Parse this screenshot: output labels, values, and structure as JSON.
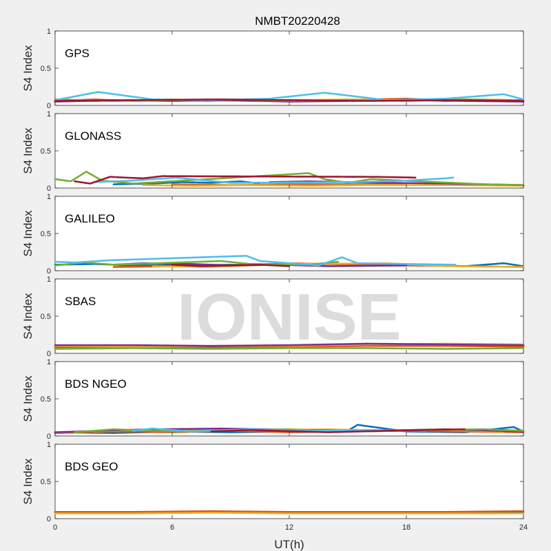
{
  "chart_data": {
    "type": "scatter",
    "title": "NMBT20220428",
    "xlabel": "UT(h)",
    "ylabel": "S4 Index",
    "xlim": [
      0,
      24
    ],
    "ylim": [
      0,
      1
    ],
    "xticks": [
      "0",
      "6",
      "12",
      "18",
      "24"
    ],
    "yticks": [
      "0",
      "0.5",
      "1"
    ],
    "watermark": "IONISE",
    "colors": [
      "#0072bd",
      "#d95319",
      "#edb120",
      "#7e2f8e",
      "#77ac30",
      "#4dbeee",
      "#a2142f"
    ],
    "panels": [
      {
        "label": "GPS",
        "series": [
          {
            "x": [
              0,
              2,
              4,
              6,
              8,
              10,
              12,
              14,
              16,
              18,
              20,
              22,
              24
            ],
            "y": [
              0.07,
              0.06,
              0.07,
              0.06,
              0.07,
              0.06,
              0.07,
              0.06,
              0.07,
              0.08,
              0.06,
              0.07,
              0.06
            ]
          },
          {
            "x": [
              0,
              2,
              4,
              6,
              8,
              10,
              12,
              14,
              16,
              18,
              20,
              22,
              24
            ],
            "y": [
              0.06,
              0.08,
              0.06,
              0.07,
              0.06,
              0.08,
              0.06,
              0.07,
              0.08,
              0.09,
              0.07,
              0.06,
              0.07
            ]
          },
          {
            "x": [
              0,
              3,
              6,
              9,
              12,
              15,
              18,
              21,
              24
            ],
            "y": [
              0.07,
              0.06,
              0.08,
              0.06,
              0.07,
              0.08,
              0.07,
              0.08,
              0.07
            ]
          },
          {
            "x": [
              0,
              3,
              6,
              9,
              12,
              15,
              18,
              21,
              24
            ],
            "y": [
              0.05,
              0.07,
              0.06,
              0.07,
              0.05,
              0.06,
              0.07,
              0.06,
              0.05
            ]
          },
          {
            "x": [
              0,
              3,
              6,
              9,
              12,
              15,
              18,
              21,
              24
            ],
            "y": [
              0.08,
              0.06,
              0.07,
              0.08,
              0.06,
              0.07,
              0.06,
              0.08,
              0.07
            ]
          },
          {
            "x": [
              0,
              2.2,
              5,
              8,
              11,
              13.8,
              17,
              20,
              23,
              24
            ],
            "y": [
              0.07,
              0.18,
              0.08,
              0.07,
              0.09,
              0.17,
              0.07,
              0.09,
              0.15,
              0.08
            ]
          },
          {
            "x": [
              0,
              4,
              8,
              12,
              16,
              20,
              24
            ],
            "y": [
              0.06,
              0.07,
              0.08,
              0.07,
              0.06,
              0.07,
              0.06
            ]
          }
        ]
      },
      {
        "label": "GLONASS",
        "series": [
          {
            "x": [
              3,
              5,
              6.5,
              8,
              9.5,
              10.5
            ],
            "y": [
              0.05,
              0.06,
              0.08,
              0.07,
              0.09,
              0.06
            ]
          },
          {
            "x": [
              6,
              9,
              12,
              15,
              18
            ],
            "y": [
              0.05,
              0.04,
              0.05,
              0.05,
              0.05
            ]
          },
          {
            "x": [
              4.5,
              7,
              10,
              13,
              16,
              20,
              24
            ],
            "y": [
              0.04,
              0.03,
              0.04,
              0.03,
              0.04,
              0.04,
              0.03
            ]
          },
          {
            "x": [
              11,
              13,
              15,
              17,
              20,
              22,
              24
            ],
            "y": [
              0.08,
              0.09,
              0.08,
              0.07,
              0.06,
              0.05,
              0.04
            ]
          },
          {
            "x": [
              0,
              0.8,
              1.6,
              2.4,
              4,
              13,
              13.8,
              15,
              16.2,
              22,
              24
            ],
            "y": [
              0.12,
              0.09,
              0.22,
              0.1,
              0.06,
              0.2,
              0.12,
              0.07,
              0.12,
              0.05,
              0.04
            ]
          },
          {
            "x": [
              2,
              4,
              6.2,
              7,
              9,
              15.5,
              18,
              20,
              20.4
            ],
            "y": [
              0.08,
              0.1,
              0.14,
              0.12,
              0.07,
              0.08,
              0.1,
              0.13,
              0.14
            ]
          },
          {
            "x": [
              1,
              1.8,
              2.8,
              4.5,
              5.5,
              16.5,
              18.5
            ],
            "y": [
              0.09,
              0.06,
              0.15,
              0.13,
              0.16,
              0.15,
              0.14
            ]
          }
        ]
      },
      {
        "label": "GALILEO",
        "series": [
          {
            "x": [
              0,
              2,
              4,
              15,
              17,
              19,
              21,
              23,
              24
            ],
            "y": [
              0.08,
              0.09,
              0.07,
              0.09,
              0.07,
              0.08,
              0.06,
              0.1,
              0.06
            ]
          },
          {
            "x": [
              3,
              6,
              9,
              12,
              18,
              21,
              24
            ],
            "y": [
              0.05,
              0.06,
              0.07,
              0.1,
              0.07,
              0.06,
              0.05
            ]
          },
          {
            "x": [
              5,
              8,
              10,
              12,
              17,
              20,
              24
            ],
            "y": [
              0.06,
              0.05,
              0.07,
              0.09,
              0.1,
              0.06,
              0.05
            ]
          },
          {
            "x": [
              3,
              4.5,
              7,
              9,
              11.5,
              14,
              18
            ],
            "y": [
              0.08,
              0.1,
              0.09,
              0.07,
              0.08,
              0.06,
              0.07
            ]
          },
          {
            "x": [
              0,
              1.5,
              3,
              8.5,
              10,
              13,
              14.5
            ],
            "y": [
              0.07,
              0.11,
              0.08,
              0.13,
              0.09,
              0.08,
              0.12
            ]
          },
          {
            "x": [
              0,
              1,
              2.8,
              9.8,
              10.5,
              13.5,
              14.7,
              15.5,
              20.5
            ],
            "y": [
              0.12,
              0.11,
              0.14,
              0.2,
              0.13,
              0.07,
              0.18,
              0.1,
              0.08
            ]
          },
          {
            "x": [
              6,
              7.5,
              10.5,
              12
            ],
            "y": [
              0.08,
              0.06,
              0.08,
              0.06
            ]
          }
        ]
      },
      {
        "label": "SBAS",
        "series": [
          {
            "x": [
              0,
              4,
              8,
              12,
              16,
              20,
              24
            ],
            "y": [
              0.09,
              0.1,
              0.09,
              0.1,
              0.1,
              0.11,
              0.1
            ]
          },
          {
            "x": [
              0,
              4,
              8,
              12,
              16,
              20,
              24
            ],
            "y": [
              0.08,
              0.09,
              0.08,
              0.09,
              0.1,
              0.1,
              0.09
            ]
          },
          {
            "x": [
              0,
              4,
              8,
              12,
              16,
              20,
              24
            ],
            "y": [
              0.1,
              0.09,
              0.1,
              0.1,
              0.12,
              0.13,
              0.12
            ]
          },
          {
            "x": [
              0,
              4,
              8,
              12,
              16,
              20,
              24
            ],
            "y": [
              0.11,
              0.11,
              0.1,
              0.11,
              0.13,
              0.12,
              0.11
            ]
          },
          {
            "x": [
              0,
              4,
              8,
              12,
              16,
              20,
              24
            ],
            "y": [
              0.06,
              0.07,
              0.06,
              0.07,
              0.07,
              0.06,
              0.07
            ]
          }
        ]
      },
      {
        "label": "BDS NGEO",
        "series": [
          {
            "x": [
              0,
              3,
              6,
              9,
              12,
              15,
              15.5,
              18,
              21,
              23.5,
              24
            ],
            "y": [
              0.05,
              0.04,
              0.06,
              0.05,
              0.06,
              0.07,
              0.15,
              0.06,
              0.05,
              0.12,
              0.06
            ]
          },
          {
            "x": [
              0,
              3,
              6,
              9,
              12,
              15,
              18,
              21,
              24
            ],
            "y": [
              0.04,
              0.06,
              0.05,
              0.07,
              0.05,
              0.06,
              0.07,
              0.06,
              0.05
            ]
          },
          {
            "x": [
              2,
              5,
              8,
              11,
              14,
              17,
              20,
              23
            ],
            "y": [
              0.06,
              0.09,
              0.07,
              0.08,
              0.09,
              0.07,
              0.08,
              0.06
            ]
          },
          {
            "x": [
              0,
              3.5,
              5,
              8.5,
              13,
              16,
              20,
              24
            ],
            "y": [
              0.05,
              0.08,
              0.09,
              0.1,
              0.08,
              0.07,
              0.09,
              0.06
            ]
          },
          {
            "x": [
              1,
              3,
              6,
              9,
              12,
              15,
              18,
              22,
              24
            ],
            "y": [
              0.05,
              0.09,
              0.06,
              0.08,
              0.09,
              0.06,
              0.08,
              0.09,
              0.07
            ]
          },
          {
            "x": [
              4,
              5,
              7,
              10,
              13,
              16,
              19
            ],
            "y": [
              0.07,
              0.1,
              0.06,
              0.09,
              0.07,
              0.08,
              0.07
            ]
          },
          {
            "x": [
              8,
              10,
              14,
              17,
              21
            ],
            "y": [
              0.06,
              0.08,
              0.05,
              0.07,
              0.09
            ]
          }
        ]
      },
      {
        "label": "BDS GEO",
        "series": [
          {
            "x": [
              0,
              4,
              8,
              12,
              16,
              20,
              24
            ],
            "y": [
              0.08,
              0.08,
              0.09,
              0.08,
              0.08,
              0.08,
              0.08
            ]
          },
          {
            "x": [
              0,
              4,
              8,
              12,
              16,
              20,
              24
            ],
            "y": [
              0.09,
              0.09,
              0.1,
              0.09,
              0.09,
              0.09,
              0.1
            ]
          },
          {
            "x": [
              0,
              4,
              8,
              12,
              16,
              20,
              24
            ],
            "y": [
              0.07,
              0.07,
              0.08,
              0.07,
              0.07,
              0.07,
              0.07
            ]
          }
        ]
      }
    ]
  }
}
